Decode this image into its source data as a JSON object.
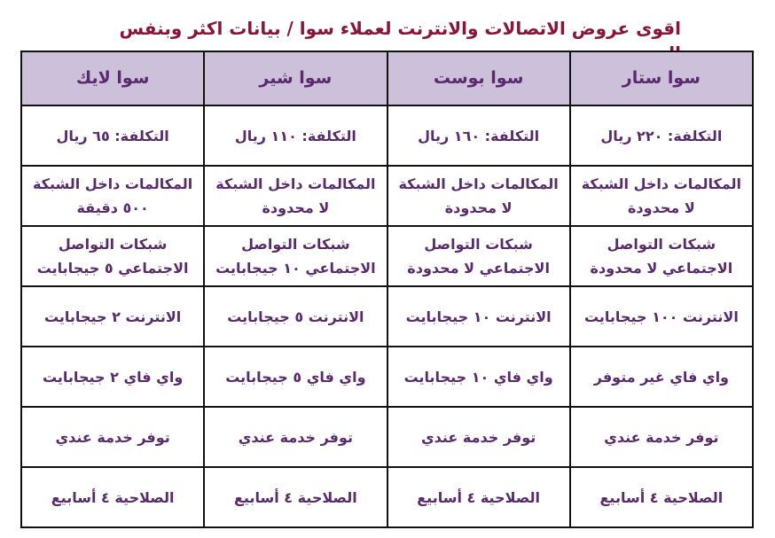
{
  "title": "اقوى عروض الاتصالات والانترنت لعملاء سوا / بيانات اكثر وبنفس السعر",
  "colors": {
    "title": "#8a1538",
    "text": "#5a2a6e",
    "header_bg": "#ccc0da"
  },
  "plans": [
    {
      "name": "سوا ستار",
      "rows": [
        "التكلفة: ٢٢٠ ريال",
        "المكالمات داخل الشبكة لا محدودة",
        "شبكات التواصل الاجتماعي لا محدودة",
        "الانترنت ١٠٠ جيجابايت",
        "واي فاي غير متوفر",
        "توفر خدمة عندي",
        "الصلاحية ٤ أسابيع"
      ]
    },
    {
      "name": "سوا بوست",
      "rows": [
        "التكلفة: ١٦٠ ريال",
        "المكالمات داخل الشبكة لا محدودة",
        "شبكات التواصل الاجتماعي لا محدودة",
        "الانترنت ١٠ جيجابايت",
        "واي فاي ١٠ جيجابايت",
        "توفر خدمة عندي",
        "الصلاحية ٤ أسابيع"
      ]
    },
    {
      "name": "سوا شير",
      "rows": [
        "التكلفة: ١١٠ ريال",
        "المكالمات داخل الشبكة لا محدودة",
        "شبكات التواصل الاجتماعي ١٠ جيجابايت",
        "الانترنت ٥ جيجابايت",
        "واي فاي ٥ جيجابايت",
        "توفر خدمة عندي",
        "الصلاحية ٤ أسابيع"
      ]
    },
    {
      "name": "سوا لايك",
      "rows": [
        "التكلفة: ٦٥ ريال",
        "المكالمات داخل الشبكة ٥٠٠ دقيقة",
        "شبكات التواصل الاجتماعي ٥ جيجابايت",
        "الانترنت ٢ جيجابايت",
        "واي فاي ٢ جيجابايت",
        "توفر خدمة عندي",
        "الصلاحية ٤ أسابيع"
      ]
    }
  ]
}
